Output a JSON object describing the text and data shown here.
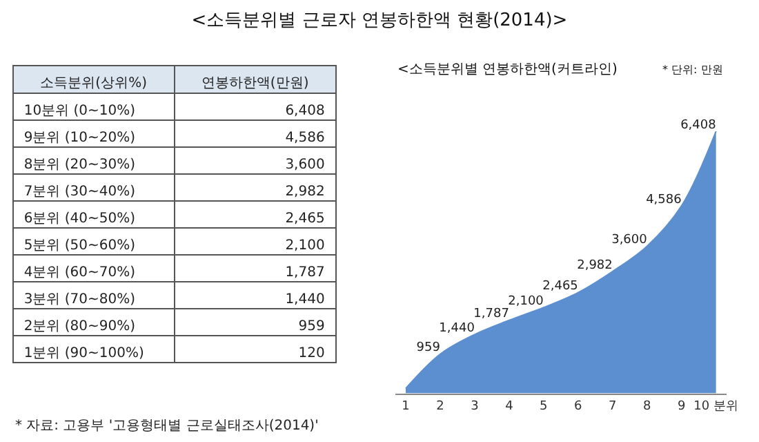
{
  "chart_data": [
    {
      "type": "other",
      "title": "<소득분위별 근로자 연봉하한액 현황(2014)>",
      "xlabel": "소득분위(상위%)",
      "ylabel": "연봉하한액(만원)",
      "categories": [
        "10분위 (0~10%)",
        "9분위 (10~20%)",
        "8분위 (20~30%)",
        "7분위 (30~40%)",
        "6분위 (40~50%)",
        "5분위 (50~60%)",
        "4분위 (60~70%)",
        "3분위 (70~80%)",
        "2분위 (80~90%)",
        "1분위 (90~100%)"
      ],
      "value_labels": [
        "6,408",
        "4,586",
        "3,600",
        "2,982",
        "2,465",
        "2,100",
        "1,787",
        "1,440",
        "959",
        "120"
      ],
      "annotations": [
        "* 자료: 고용부 '고용형태별 근로실태조사(2014)'"
      ]
    },
    {
      "type": "area",
      "title": "<소득분위별 연봉하한액(커트라인)",
      "categories": [
        "1",
        "2",
        "3",
        "4",
        "5",
        "6",
        "7",
        "8",
        "9",
        "10 분위"
      ],
      "values": [
        120,
        959,
        1440,
        1787,
        2100,
        2465,
        2982,
        3600,
        4586,
        6408
      ],
      "value_labels": [
        null,
        "959",
        "1,440",
        "1,787",
        "2,100",
        "2,465",
        "2,982",
        "3,600",
        "4,586",
        "6,408"
      ],
      "color": "#5b8fd0",
      "annotations": [
        "* 단위: 만원"
      ]
    }
  ]
}
